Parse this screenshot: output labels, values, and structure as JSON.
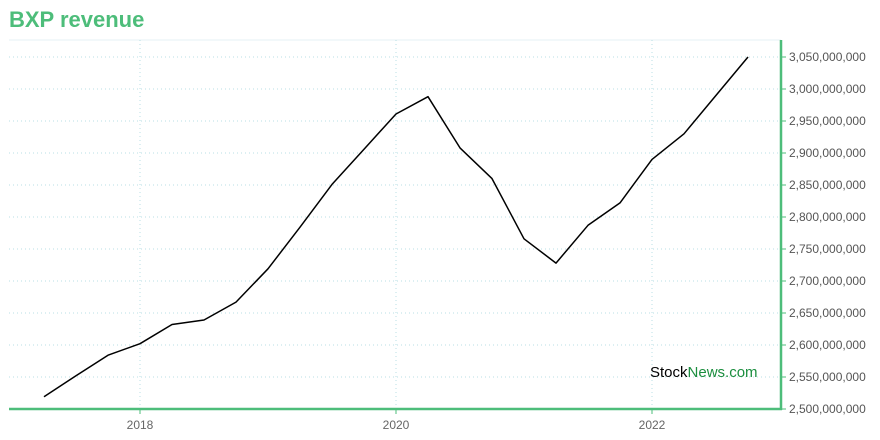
{
  "colors": {
    "accent": "#4dbd7a",
    "line": "#000000",
    "grid": "#b9dfe4",
    "watermark_brand": "#1b8e3f"
  },
  "watermark": {
    "part1": "Stock",
    "part2": "News",
    "part3": ".com"
  },
  "chart_data": {
    "type": "line",
    "title": "BXP revenue",
    "xlabel": "",
    "ylabel": "",
    "grid": true,
    "legend": "none",
    "y_axis_side": "right",
    "xlim": [
      2017.0,
      2023.5
    ],
    "ylim": [
      2500000000,
      3050000000
    ],
    "x_ticks": [
      {
        "value": 2018,
        "label": "2018"
      },
      {
        "value": 2020,
        "label": "2020"
      },
      {
        "value": 2022,
        "label": "2022"
      }
    ],
    "y_ticks": [
      {
        "value": 2500000000,
        "label": "2,500,000,000"
      },
      {
        "value": 2550000000,
        "label": "2,550,000,000"
      },
      {
        "value": 2600000000,
        "label": "2,600,000,000"
      },
      {
        "value": 2650000000,
        "label": "2,650,000,000"
      },
      {
        "value": 2700000000,
        "label": "2,700,000,000"
      },
      {
        "value": 2750000000,
        "label": "2,750,000,000"
      },
      {
        "value": 2800000000,
        "label": "2,800,000,000"
      },
      {
        "value": 2850000000,
        "label": "2,850,000,000"
      },
      {
        "value": 2900000000,
        "label": "2,900,000,000"
      },
      {
        "value": 2950000000,
        "label": "2,950,000,000"
      },
      {
        "value": 3000000000,
        "label": "3,000,000,000"
      },
      {
        "value": 3050000000,
        "label": "3,050,000,000"
      }
    ],
    "series": [
      {
        "x": [
          "2017-Q1",
          "2017-Q2",
          "2017-Q3",
          "2017-Q4",
          "2018-Q1",
          "2018-Q2",
          "2018-Q3",
          "2018-Q4",
          "2019-Q1",
          "2019-Q2",
          "2019-Q3",
          "2019-Q4",
          "2020-Q1",
          "2020-Q2",
          "2020-Q3",
          "2020-Q4",
          "2021-Q1",
          "2021-Q2",
          "2021-Q3",
          "2021-Q4",
          "2022-Q1",
          "2022-Q2",
          "2022-Q3",
          "2022-Q4"
        ],
        "xnum": [
          2017.25,
          2017.5,
          2017.75,
          2018.0,
          2018.25,
          2018.5,
          2018.75,
          2019.0,
          2019.25,
          2019.5,
          2019.75,
          2020.0,
          2020.25,
          2020.5,
          2020.75,
          2021.0,
          2021.25,
          2021.5,
          2021.75,
          2022.0,
          2022.25,
          2022.5,
          2022.75,
          2023.0
        ],
        "values": [
          2519000000,
          2552000000,
          2584000000,
          2602000000,
          2632000000,
          2639000000,
          2667000000,
          2719000000,
          2784000000,
          2851000000,
          2906000000,
          2961000000,
          2988000000,
          2908000000,
          2860000000,
          2766000000,
          2728000000,
          2787000000,
          2822000000,
          2890000000,
          2930000000,
          2990000000,
          3050000000,
          3050000000
        ]
      }
    ]
  }
}
